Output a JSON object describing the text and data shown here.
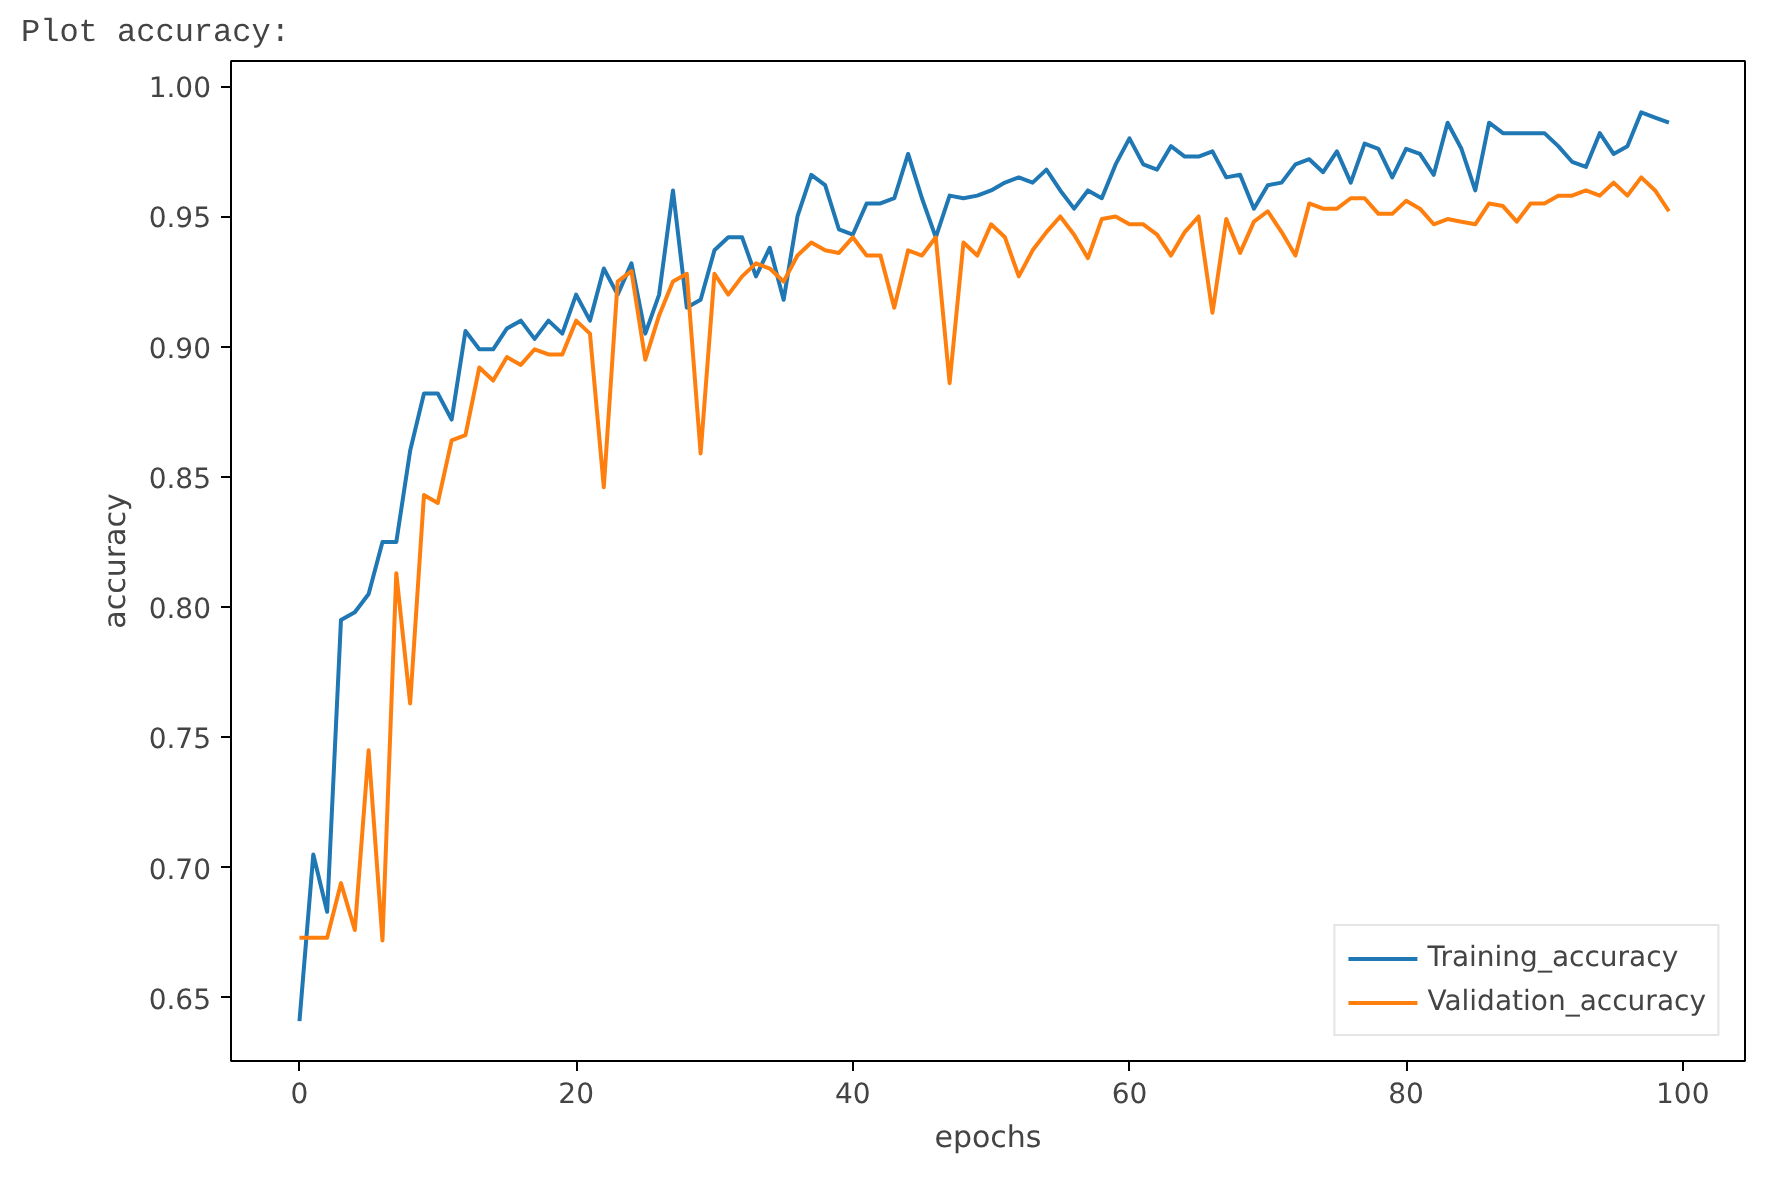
{
  "chart_data": {
    "type": "line",
    "title": "Plot accuracy:",
    "xlabel": "epochs",
    "ylabel": "accuracy",
    "x": [
      0,
      1,
      2,
      3,
      4,
      5,
      6,
      7,
      8,
      9,
      10,
      11,
      12,
      13,
      14,
      15,
      16,
      17,
      18,
      19,
      20,
      21,
      22,
      23,
      24,
      25,
      26,
      27,
      28,
      29,
      30,
      31,
      32,
      33,
      34,
      35,
      36,
      37,
      38,
      39,
      40,
      41,
      42,
      43,
      44,
      45,
      46,
      47,
      48,
      49,
      50,
      51,
      52,
      53,
      54,
      55,
      56,
      57,
      58,
      59,
      60,
      61,
      62,
      63,
      64,
      65,
      66,
      67,
      68,
      69,
      70,
      71,
      72,
      73,
      74,
      75,
      76,
      77,
      78,
      79,
      80,
      81,
      82,
      83,
      84,
      85,
      86,
      87,
      88,
      89,
      90,
      91,
      92,
      93,
      94,
      95,
      96,
      97,
      98,
      99
    ],
    "series": [
      {
        "name": "Training_accuracy",
        "color": "#1f77b4",
        "values": [
          0.641,
          0.705,
          0.683,
          0.795,
          0.798,
          0.805,
          0.825,
          0.825,
          0.86,
          0.882,
          0.882,
          0.872,
          0.906,
          0.899,
          0.899,
          0.907,
          0.91,
          0.903,
          0.91,
          0.905,
          0.92,
          0.91,
          0.93,
          0.92,
          0.932,
          0.905,
          0.92,
          0.96,
          0.915,
          0.918,
          0.937,
          0.942,
          0.942,
          0.927,
          0.938,
          0.918,
          0.95,
          0.966,
          0.962,
          0.945,
          0.943,
          0.955,
          0.955,
          0.957,
          0.974,
          0.957,
          0.942,
          0.958,
          0.957,
          0.958,
          0.96,
          0.963,
          0.965,
          0.963,
          0.968,
          0.96,
          0.953,
          0.96,
          0.957,
          0.97,
          0.98,
          0.97,
          0.968,
          0.977,
          0.973,
          0.973,
          0.975,
          0.965,
          0.966,
          0.953,
          0.962,
          0.963,
          0.97,
          0.972,
          0.967,
          0.975,
          0.963,
          0.978,
          0.976,
          0.965,
          0.976,
          0.974,
          0.966,
          0.986,
          0.976,
          0.96,
          0.986,
          0.982,
          0.982,
          0.982,
          0.982,
          0.977,
          0.971,
          0.969,
          0.982,
          0.974,
          0.977,
          0.99,
          0.988,
          0.986
        ]
      },
      {
        "name": "Validation_accuracy",
        "color": "#ff7f0e",
        "values": [
          0.673,
          0.673,
          0.673,
          0.694,
          0.676,
          0.745,
          0.672,
          0.813,
          0.763,
          0.843,
          0.84,
          0.864,
          0.866,
          0.892,
          0.887,
          0.896,
          0.893,
          0.899,
          0.897,
          0.897,
          0.91,
          0.905,
          0.846,
          0.925,
          0.929,
          0.895,
          0.912,
          0.925,
          0.928,
          0.859,
          0.928,
          0.92,
          0.927,
          0.932,
          0.93,
          0.925,
          0.935,
          0.94,
          0.937,
          0.936,
          0.942,
          0.935,
          0.935,
          0.915,
          0.937,
          0.935,
          0.942,
          0.886,
          0.94,
          0.935,
          0.947,
          0.942,
          0.927,
          0.937,
          0.944,
          0.95,
          0.943,
          0.934,
          0.949,
          0.95,
          0.947,
          0.947,
          0.943,
          0.935,
          0.944,
          0.95,
          0.913,
          0.949,
          0.936,
          0.948,
          0.952,
          0.944,
          0.935,
          0.955,
          0.953,
          0.953,
          0.957,
          0.957,
          0.951,
          0.951,
          0.956,
          0.953,
          0.947,
          0.949,
          0.948,
          0.947,
          0.955,
          0.954,
          0.948,
          0.955,
          0.955,
          0.958,
          0.958,
          0.96,
          0.958,
          0.963,
          0.958,
          0.965,
          0.96,
          0.952
        ]
      }
    ],
    "xlim": [
      -4.95,
      104.5
    ],
    "ylim": [
      0.6257,
      1.0097
    ],
    "xticks": [
      0,
      20,
      40,
      60,
      80,
      100
    ],
    "yticks": [
      {
        "value": 0.65,
        "label": "0.65"
      },
      {
        "value": 0.7,
        "label": "0.70"
      },
      {
        "value": 0.75,
        "label": "0.75"
      },
      {
        "value": 0.8,
        "label": "0.80"
      },
      {
        "value": 0.85,
        "label": "0.85"
      },
      {
        "value": 0.9,
        "label": "0.90"
      },
      {
        "value": 0.95,
        "label": "0.95"
      },
      {
        "value": 1.0,
        "label": "1.00"
      }
    ],
    "legend": "bottom right",
    "grid": false,
    "line_style": "solid"
  }
}
